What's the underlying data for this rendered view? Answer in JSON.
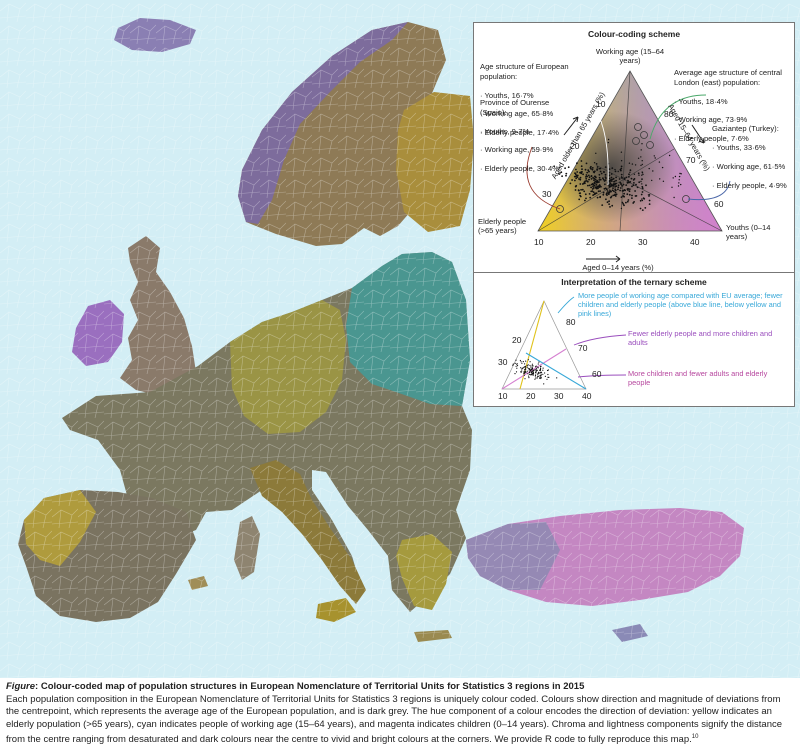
{
  "colors": {
    "sea": "#d3eef5",
    "land": "#b8b8b8",
    "elderly": "#f6d31a",
    "working": "#2fb3d6",
    "youth": "#d57fd0",
    "centre": "#3a3a3a",
    "interp_blue": "#38a8d8",
    "interp_purple": "#9a4ebd",
    "interp_magenta": "#b6469e",
    "leader_green": "#4aa86a",
    "leader_red": "#9a3b2f",
    "leader_blue": "#4a66a8"
  },
  "legend": {
    "title": "Colour-coding scheme",
    "europe_note": {
      "title": "Age structure of European population:",
      "lines": [
        "· Youths, 16·7%",
        "· Working age, 65·8%",
        "· Elderly people, 17·4%"
      ]
    },
    "ourense_note": {
      "title": "Province of Ourense (Spain):",
      "lines": [
        "· Youths, 9·7%",
        "· Working age, 59·9%",
        "· Elderly people, 30·4%"
      ]
    },
    "london_note": {
      "title": "Average age structure of central London (east) population:",
      "lines": [
        "· Youths, 18·4%",
        "· Working age, 73·9%",
        "· Elderly people, 7·6%"
      ]
    },
    "gaziantep_note": {
      "title": "Gaziantep (Turkey):",
      "lines": [
        "· Youths, 33·6%",
        "· Working age, 61·5%",
        "· Elderly people, 4·9%"
      ]
    },
    "vertex_top": "Working age (15–64 years)",
    "vertex_left": "Elderly people (>65 years)",
    "vertex_right": "Youths (0–14 years)",
    "axis_left": "Aged older than 65 years (%)",
    "axis_right": "Aged 15–64 years (%)",
    "axis_bottom": "Aged 0–14 years (%)",
    "ticks_left": [
      "10",
      "20",
      "30"
    ],
    "ticks_right": [
      "80",
      "70",
      "60"
    ],
    "ticks_bottom": [
      "10",
      "20",
      "30",
      "40"
    ]
  },
  "interpretation": {
    "title": "Interpretation of the ternary scheme",
    "items": [
      "More people of working age compared with EU average; fewer children and elderly people (above blue line, below yellow and pink lines)",
      "Fewer elderly people and more children and adults",
      "More children and fewer adults and elderly people"
    ],
    "ticks_left": [
      "20",
      "30"
    ],
    "ticks_right": [
      "80",
      "70",
      "60"
    ],
    "ticks_bottom": [
      "10",
      "20",
      "30",
      "40"
    ]
  },
  "caption": {
    "label": "Figure",
    "title": ": Colour-coded map of population structures in European Nomenclature of Territorial Units for Statistics 3 regions in 2015",
    "body": "Each population composition in the European Nomenclature of Territorial Units for Statistics 3 regions is uniquely colour coded. Colours show direction and magnitude of deviations from the centrepoint, which represents the average age of the European population, and is dark grey. The hue component of a colour encodes the direction of deviation: yellow indicates an elderly population (>65 years), cyan indicates people of working age (15–64 years), and magenta indicates children (0–14 years). Chroma and lightness components signify the distance from the centre ranging from desaturated and dark colours near the centre to vivid and bright colours at the corners. We provide R code to fully reproduce this map.",
    "ref": "10"
  }
}
